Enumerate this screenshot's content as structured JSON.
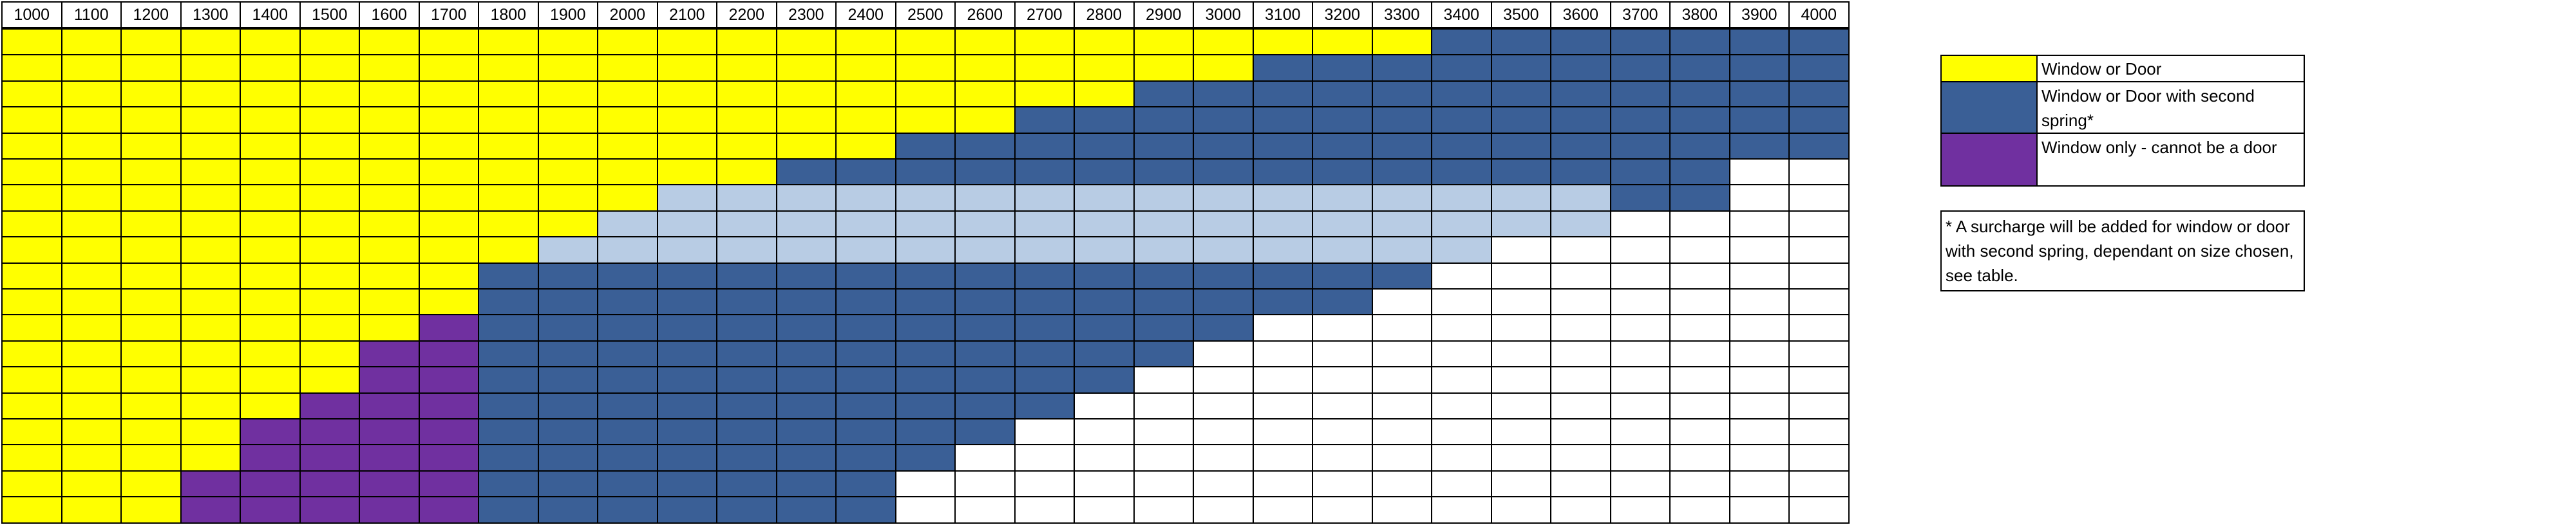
{
  "table": {
    "header": [
      1000,
      1100,
      1200,
      1300,
      1400,
      1500,
      1600,
      1700,
      1800,
      1900,
      2000,
      2100,
      2200,
      2300,
      2400,
      2500,
      2600,
      2700,
      2800,
      2900,
      3000,
      3100,
      3200,
      3300,
      3400,
      3500,
      3600,
      3700,
      3800,
      3900,
      4000
    ]
  },
  "legend": [
    {
      "label": "Window or Door",
      "color": "#ffff00"
    },
    {
      "label": "Window or Door with second spring*",
      "color": "#3a5f96"
    },
    {
      "label": "Window only - cannot be a door",
      "color": "#b8cce4"
    },
    {
      "label": "",
      "color": "#7030a0"
    }
  ],
  "note": "* A surcharge will be added for window or door with second spring, dependant on size chosen, see table."
}
